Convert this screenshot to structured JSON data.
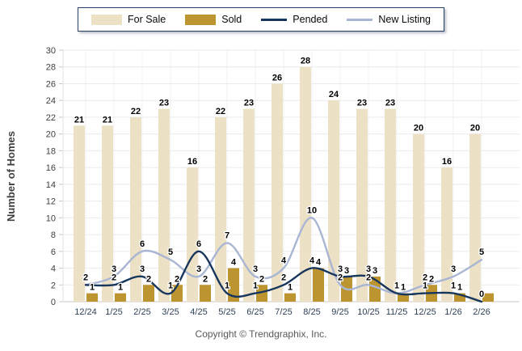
{
  "legend": {
    "items": [
      {
        "label": "For Sale",
        "type": "bar",
        "color": "#ECE0C5"
      },
      {
        "label": "Sold",
        "type": "bar",
        "color": "#BD9530"
      },
      {
        "label": "Pended",
        "type": "line",
        "color": "#17365D"
      },
      {
        "label": "New Listing",
        "type": "line",
        "color": "#A9B6D3"
      }
    ]
  },
  "chart_data": {
    "type": "bar",
    "title": "",
    "categories": [
      "12/24",
      "1/25",
      "2/25",
      "3/25",
      "4/25",
      "5/25",
      "6/25",
      "7/25",
      "8/25",
      "9/25",
      "10/25",
      "11/25",
      "12/25",
      "1/26",
      "2/26"
    ],
    "series": [
      {
        "name": "For Sale",
        "type": "bar",
        "color": "#ECE0C5",
        "values": [
          21,
          21,
          22,
          23,
          16,
          22,
          23,
          26,
          28,
          24,
          23,
          23,
          20,
          16,
          20
        ],
        "labels": [
          "21",
          "21",
          "22",
          "23",
          "16",
          "22",
          "23",
          "26",
          "28",
          "24",
          "23",
          "23",
          "20",
          "16",
          "20"
        ]
      },
      {
        "name": "Sold",
        "type": "bar",
        "color": "#BD9530",
        "values": [
          1,
          1,
          2,
          2,
          2,
          4,
          2,
          1,
          4,
          3,
          3,
          1,
          2,
          1,
          1
        ],
        "labels": [
          "1",
          "1",
          "2",
          "2",
          "2",
          "4",
          "2",
          "1",
          "4",
          "3",
          "3",
          "1",
          "2",
          "1",
          null
        ]
      },
      {
        "name": "Pended",
        "type": "line",
        "color": "#17365D",
        "values": [
          2,
          2,
          3,
          1,
          6,
          1,
          1,
          2,
          4,
          3,
          3,
          1,
          1,
          1,
          0
        ],
        "labels": [
          "2",
          "2",
          "3",
          "1",
          "6",
          "1",
          "1",
          "2",
          "4",
          "3",
          "3",
          "1",
          "1",
          "1",
          "0"
        ]
      },
      {
        "name": "New Listing",
        "type": "line",
        "color": "#A9B6D3",
        "values": [
          2,
          3,
          6,
          5,
          3,
          7,
          3,
          4,
          10,
          2,
          2,
          1,
          2,
          3,
          5
        ],
        "labels": [
          "2",
          "3",
          "6",
          "5",
          "3",
          "7",
          "3",
          "4",
          "10",
          "2",
          "2",
          "1",
          "2",
          "3",
          "5"
        ]
      }
    ],
    "xlabel": "",
    "ylabel": "Number of Homes",
    "yaxis": {
      "min": 0,
      "max": 30,
      "step": 2
    },
    "grid": true,
    "legend_position": "top"
  },
  "footer": {
    "copyright": "Copyright © Trendgraphix, Inc."
  }
}
